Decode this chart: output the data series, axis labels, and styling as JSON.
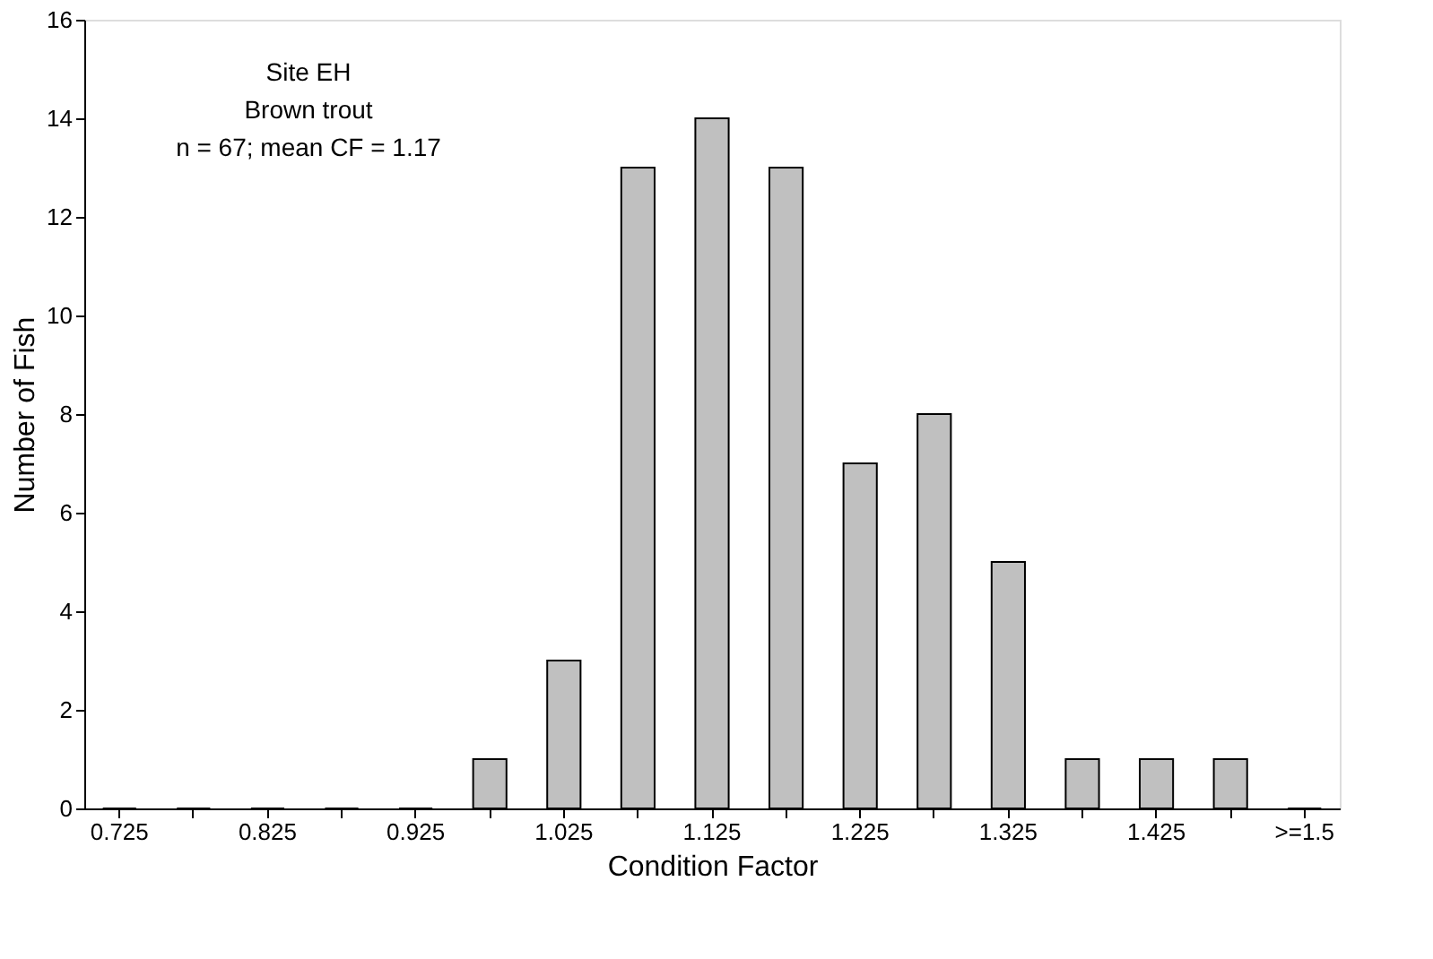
{
  "chart_data": {
    "type": "bar",
    "xlabel": "Condition Factor",
    "ylabel": "Number of Fish",
    "categories": [
      "0.725",
      null,
      "0.825",
      null,
      "0.925",
      null,
      "1.025",
      null,
      "1.125",
      null,
      "1.225",
      null,
      "1.325",
      null,
      "1.425",
      null,
      ">=1.5"
    ],
    "values": [
      0,
      0,
      0,
      0,
      0,
      1,
      3,
      13,
      14,
      13,
      7,
      8,
      5,
      1,
      1,
      1,
      0
    ],
    "color": "#c0c0c0",
    "ylim": [
      0,
      16
    ],
    "yticks": [
      0,
      2,
      4,
      6,
      8,
      10,
      12,
      14,
      16
    ],
    "grid": false,
    "annotations": [
      "Site EH",
      "Brown trout",
      "n = 67; mean CF = 1.17"
    ]
  }
}
